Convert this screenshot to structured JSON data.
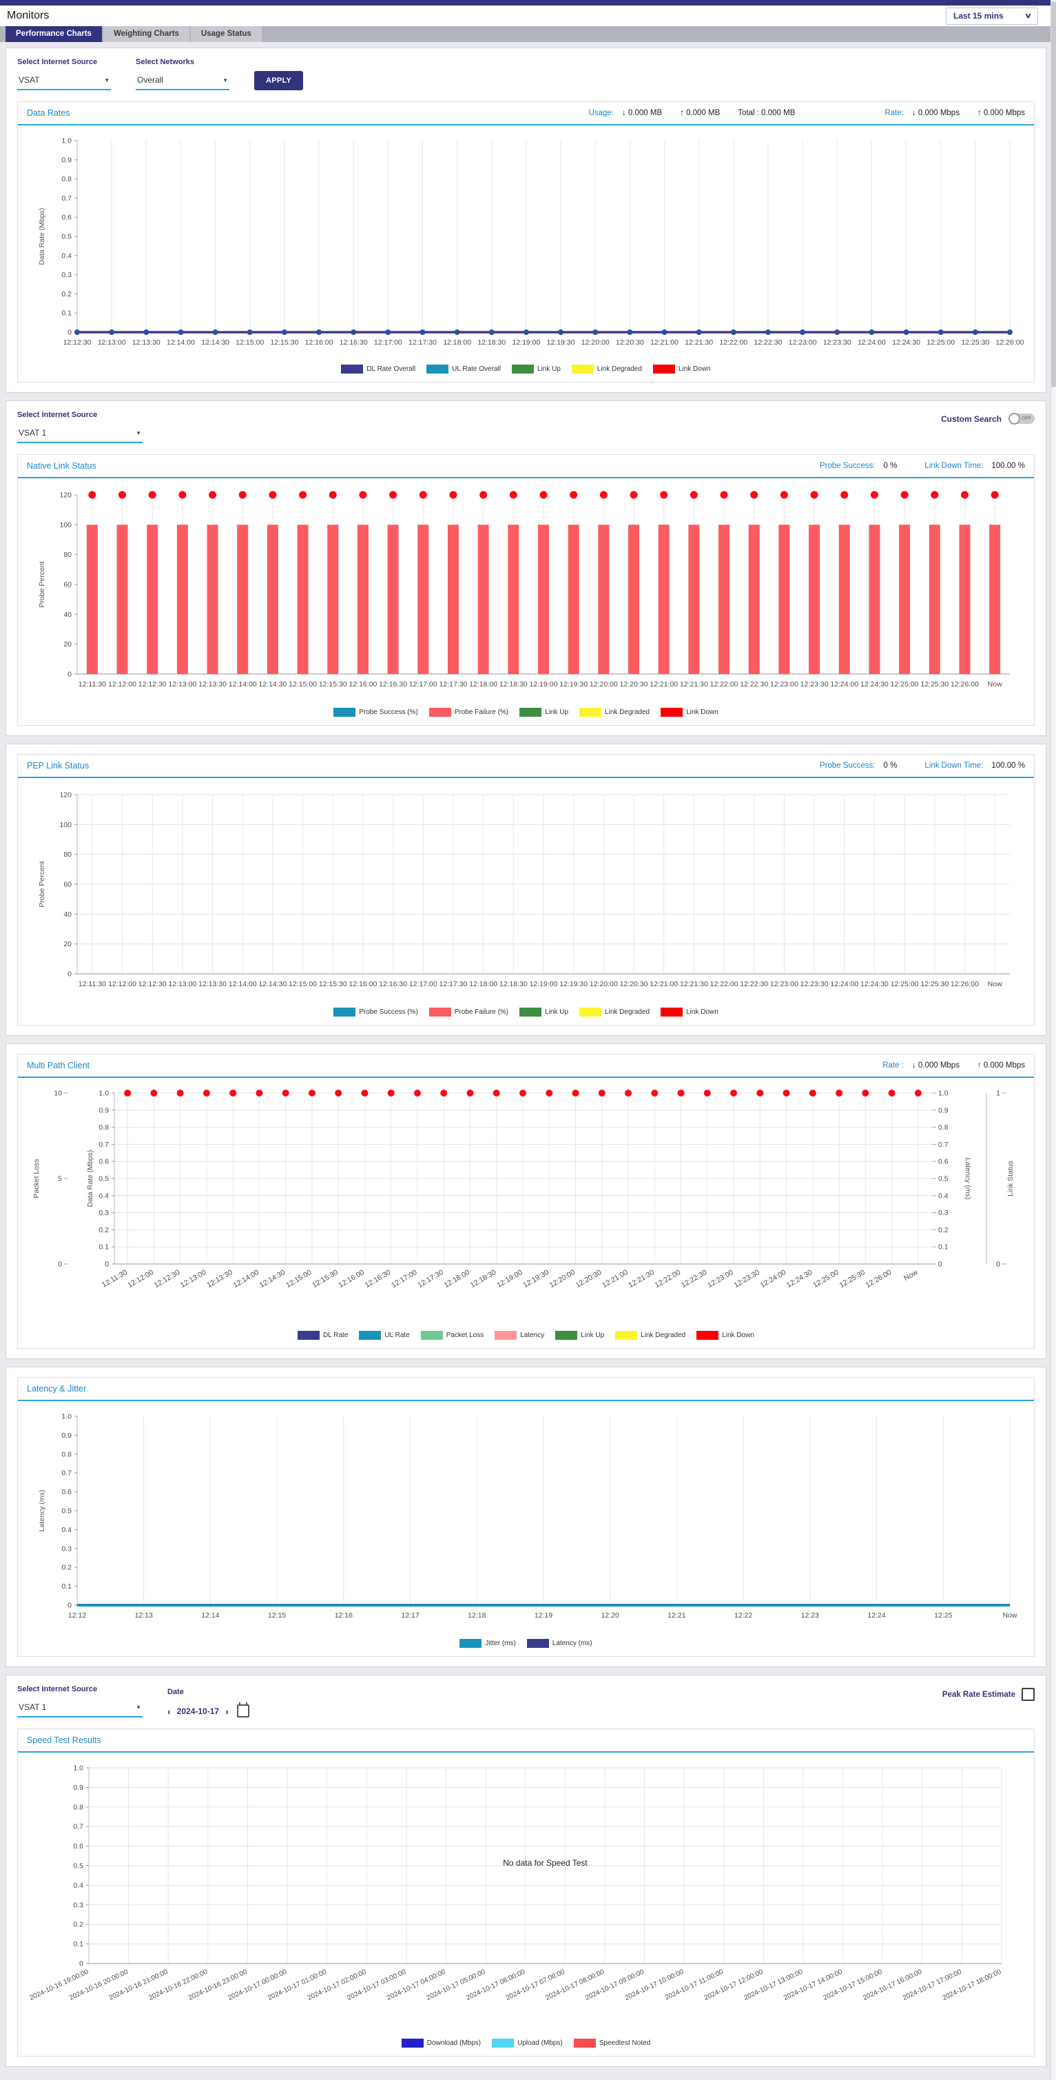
{
  "topbar": {
    "title": "Monitors",
    "time_range": "Last 15 mins"
  },
  "tabs": [
    {
      "label": "Performance Charts",
      "active": true
    },
    {
      "label": "Weighting Charts",
      "active": false
    },
    {
      "label": "Usage Status",
      "active": false
    }
  ],
  "filters1": {
    "source_label": "Select Internet Source",
    "source_value": "VSAT",
    "networks_label": "Select Networks",
    "networks_value": "Overall",
    "apply_label": "APPLY"
  },
  "filters2": {
    "source_label": "Select Internet Source",
    "source_value": "VSAT 1",
    "custom_search_label": "Custom Search",
    "toggle_state": "OFF"
  },
  "filters3": {
    "source_label": "Select Internet Source",
    "source_value": "VSAT 1",
    "date_label": "Date",
    "date_value": "2024-10-17",
    "prev_icon": "‹",
    "next_icon": "›",
    "peak_label": "Peak Rate Estimate"
  },
  "panels": {
    "data_rates": {
      "title": "Data Rates",
      "usage_label": "Usage:",
      "usage_down": "↓ 0.000 MB",
      "usage_up": "↑ 0.000 MB",
      "usage_total": "Total : 0.000 MB",
      "rate_label": "Rate:",
      "rate_down": "↓ 0.000 Mbps",
      "rate_up": "↑ 0.000 Mbps"
    },
    "native": {
      "title": "Native Link Status",
      "probe_label": "Probe Success:",
      "probe_value": "0 %",
      "downtime_label": "Link Down Time:",
      "downtime_value": "100.00 %"
    },
    "pep": {
      "title": "PEP Link Status",
      "probe_label": "Probe Success:",
      "probe_value": "0 %",
      "downtime_label": "Link Down Time:",
      "downtime_value": "100.00 %"
    },
    "multipath": {
      "title": "Multi Path Client",
      "rate_label": "Rate :",
      "rate_down": "↓ 0.000 Mbps",
      "rate_up": "↑ 0.000 Mbps"
    },
    "latency": {
      "title": "Latency & Jitter"
    },
    "speedtest": {
      "title": "Speed Test Results"
    }
  },
  "colors": {
    "accent_navy": "#32327d",
    "panel_title_blue": "#1d87c8",
    "underline_blue": "#2aa3dc",
    "dl_navy": "#3b3b8e",
    "teal": "#1a93ba",
    "link_up_green": "#3e8e41",
    "link_degraded_yellow": "#fbf42c",
    "link_down_red": "#fb0000",
    "probe_failure_salmon": "#fb5b60",
    "packet_loss_green": "#70c794",
    "latency_pink": "#fb9598",
    "download_blue": "#2020cc",
    "upload_cyan": "#52d5f0",
    "speedtest_red": "#fb4d52"
  },
  "chart_data": [
    {
      "id": "data_rates",
      "type": "line",
      "title": "Data Rates",
      "ylabel": "Data Rate (Mbps)",
      "ylim": [
        0,
        1
      ],
      "yticks": [
        1,
        0.9,
        0.8,
        0.7,
        0.6,
        0.5,
        0.4,
        0.3,
        0.2,
        0.1,
        0
      ],
      "ytick_labels": [
        "1.0",
        "0.9",
        "0.8",
        "0.7",
        "0.6",
        "0.5",
        "0.4",
        "0.3",
        "0.2",
        "0.1",
        "0"
      ],
      "categories": [
        "12:12:30",
        "12:13:00",
        "12:13:30",
        "12:14:00",
        "12:14:30",
        "12:15:00",
        "12:15:30",
        "12:16:00",
        "12:16:30",
        "12:17:00",
        "12:17:30",
        "12:18:00",
        "12:18:30",
        "12:19:00",
        "12:19:30",
        "12:20:00",
        "12:20:30",
        "12:21:00",
        "12:21:30",
        "12:22:00",
        "12:22:30",
        "12:23:00",
        "12:23:30",
        "12:24:00",
        "12:24:30",
        "12:25:00",
        "12:25:30",
        "12:26:00"
      ],
      "series": [
        {
          "name": "UL Rate Overall",
          "type": "line",
          "color": "#1a93ba",
          "width": 2,
          "values": [
            0,
            0,
            0,
            0,
            0,
            0,
            0,
            0,
            0,
            0,
            0,
            0,
            0,
            0,
            0,
            0,
            0,
            0,
            0,
            0,
            0,
            0,
            0,
            0,
            0,
            0,
            0,
            0
          ]
        },
        {
          "name": "DL Rate Overall",
          "type": "line",
          "color": "#3b3b8e",
          "width": 3.5,
          "dots": true,
          "dot_r": 4,
          "dot_color": "#2d4f9e",
          "values": [
            0,
            0,
            0,
            0,
            0,
            0,
            0,
            0,
            0,
            0,
            0,
            0,
            0,
            0,
            0,
            0,
            0,
            0,
            0,
            0,
            0,
            0,
            0,
            0,
            0,
            0,
            0,
            0
          ]
        }
      ],
      "legend": [
        {
          "label": "DL Rate Overall",
          "color": "#3b3b8e"
        },
        {
          "label": "UL Rate Overall",
          "color": "#1a93ba"
        },
        {
          "label": "Link Up",
          "color": "#3e8e41"
        },
        {
          "label": "Link Degraded",
          "color": "#fbf42c"
        },
        {
          "label": "Link Down",
          "color": "#fb0000"
        }
      ]
    },
    {
      "id": "native",
      "type": "bar",
      "title": "Native Link Status",
      "ylabel": "Probe Percent",
      "ylim": [
        0,
        120
      ],
      "yticks": [
        120,
        100,
        80,
        60,
        40,
        20,
        0
      ],
      "ytick_labels": [
        "120",
        "100",
        "80",
        "60",
        "40",
        "20",
        "0"
      ],
      "categories": [
        "12:11:30",
        "12:12:00",
        "12:12:30",
        "12:13:00",
        "12:13:30",
        "12:14:00",
        "12:14:30",
        "12:15:00",
        "12:15:30",
        "12:16:00",
        "12:16:30",
        "12:17:00",
        "12:17:30",
        "12:18:00",
        "12:18:30",
        "12:19:00",
        "12:19:30",
        "12:20:00",
        "12:20:30",
        "12:21:00",
        "12:21:30",
        "12:22:00",
        "12:22:30",
        "12:23:00",
        "12:23:30",
        "12:24:00",
        "12:24:30",
        "12:25:00",
        "12:25:30",
        "12:26:00",
        "Now"
      ],
      "series": [
        {
          "name": "Probe Failure (%)",
          "type": "bars",
          "color": "#fb5b60",
          "values": [
            100,
            100,
            100,
            100,
            100,
            100,
            100,
            100,
            100,
            100,
            100,
            100,
            100,
            100,
            100,
            100,
            100,
            100,
            100,
            100,
            100,
            100,
            100,
            100,
            100,
            100,
            100,
            100,
            100,
            100,
            100
          ]
        },
        {
          "name": "Link Down",
          "type": "dots",
          "color": "#fb0a10",
          "r": 5.5,
          "values": [
            120,
            120,
            120,
            120,
            120,
            120,
            120,
            120,
            120,
            120,
            120,
            120,
            120,
            120,
            120,
            120,
            120,
            120,
            120,
            120,
            120,
            120,
            120,
            120,
            120,
            120,
            120,
            120,
            120,
            120,
            120
          ]
        }
      ],
      "legend": [
        {
          "label": "Probe Success (%)",
          "color": "#1a93ba"
        },
        {
          "label": "Probe Failure (%)",
          "color": "#fb5b60"
        },
        {
          "label": "Link Up",
          "color": "#3e8e41"
        },
        {
          "label": "Link Degraded",
          "color": "#fbf42c"
        },
        {
          "label": "Link Down",
          "color": "#fb0000"
        }
      ]
    },
    {
      "id": "pep",
      "type": "bar",
      "title": "PEP Link Status",
      "ylabel": "Probe Percent",
      "ylim": [
        0,
        120
      ],
      "yticks": [
        120,
        100,
        80,
        60,
        40,
        20,
        0
      ],
      "ytick_labels": [
        "120",
        "100",
        "80",
        "60",
        "40",
        "20",
        "0"
      ],
      "categories": [
        "12:11:30",
        "12:12:00",
        "12:12:30",
        "12:13:00",
        "12:13:30",
        "12:14:00",
        "12:14:30",
        "12:15:00",
        "12:15:30",
        "12:16:00",
        "12:16:30",
        "12:17:00",
        "12:17:30",
        "12:18:00",
        "12:18:30",
        "12:19:00",
        "12:19:30",
        "12:20:00",
        "12:20:30",
        "12:21:00",
        "12:21:30",
        "12:22:00",
        "12:22:30",
        "12:23:00",
        "12:23:30",
        "12:24:00",
        "12:24:30",
        "12:25:00",
        "12:25:30",
        "12:26:00",
        "Now"
      ],
      "series": [],
      "legend": [
        {
          "label": "Probe Success (%)",
          "color": "#1a93ba"
        },
        {
          "label": "Probe Failure (%)",
          "color": "#fb5b60"
        },
        {
          "label": "Link Up",
          "color": "#3e8e41"
        },
        {
          "label": "Link Degraded",
          "color": "#fbf42c"
        },
        {
          "label": "Link Down",
          "color": "#fb0000"
        }
      ]
    },
    {
      "id": "multipath",
      "type": "line",
      "title": "Multi Path Client",
      "ylabel": "Data Rate (Mbps)",
      "ylim": [
        0,
        1
      ],
      "yticks": [
        1,
        0.9,
        0.8,
        0.7,
        0.6,
        0.5,
        0.4,
        0.3,
        0.2,
        0.1,
        0
      ],
      "ytick_labels": [
        "1.0",
        "0.9",
        "0.8",
        "0.7",
        "0.6",
        "0.5",
        "0.4",
        "0.3",
        "0.2",
        "0.1",
        "0"
      ],
      "extra_axes": {
        "left_outer": {
          "label": "Packet Loss",
          "lim": [
            0,
            10
          ],
          "ticks": [
            10,
            5,
            0
          ],
          "labels": [
            "10",
            "5",
            "0"
          ]
        },
        "right_inner": {
          "label": "Latency (ms)",
          "lim": [
            0,
            1
          ],
          "ticks": [
            1,
            0.9,
            0.8,
            0.7,
            0.6,
            0.5,
            0.4,
            0.3,
            0.2,
            0.1,
            0
          ],
          "labels": [
            "1.0",
            "0.9",
            "0.8",
            "0.7",
            "0.6",
            "0.5",
            "0.4",
            "0.3",
            "0.2",
            "0.1",
            "0"
          ]
        },
        "right_outer": {
          "label": "Link Status",
          "lim": [
            0,
            1
          ],
          "ticks": [
            1,
            0
          ],
          "labels": [
            "1",
            "0"
          ]
        }
      },
      "categories": [
        "12:11:30",
        "12:12:00",
        "12:12:30",
        "12:13:00",
        "12:13:30",
        "12:14:00",
        "12:14:30",
        "12:15:00",
        "12:15:30",
        "12:16:00",
        "12:16:30",
        "12:17:00",
        "12:17:30",
        "12:18:00",
        "12:18:30",
        "12:19:00",
        "12:19:30",
        "12:20:00",
        "12:20:30",
        "12:21:00",
        "12:21:30",
        "12:22:00",
        "12:22:30",
        "12:23:00",
        "12:23:30",
        "12:24:00",
        "12:24:30",
        "12:25:00",
        "12:25:30",
        "12:26:00",
        "Now"
      ],
      "series": [
        {
          "name": "Link Down",
          "type": "dots",
          "color": "#fb0a10",
          "r": 5,
          "values": [
            1,
            1,
            1,
            1,
            1,
            1,
            1,
            1,
            1,
            1,
            1,
            1,
            1,
            1,
            1,
            1,
            1,
            1,
            1,
            1,
            1,
            1,
            1,
            1,
            1,
            1,
            1,
            1,
            1,
            1,
            1
          ]
        }
      ],
      "legend": [
        {
          "label": "DL Rate",
          "color": "#3b3b8e"
        },
        {
          "label": "UL Rate",
          "color": "#1a93ba"
        },
        {
          "label": "Packet Loss",
          "color": "#70c794"
        },
        {
          "label": "Latency",
          "color": "#fb9598"
        },
        {
          "label": "Link Up",
          "color": "#3e8e41"
        },
        {
          "label": "Link Degraded",
          "color": "#fbf42c"
        },
        {
          "label": "Link Down",
          "color": "#fb0000"
        }
      ]
    },
    {
      "id": "latency",
      "type": "line",
      "title": "Latency & Jitter",
      "ylabel": "Latency (ms)",
      "ylim": [
        0,
        1
      ],
      "yticks": [
        1,
        0.9,
        0.8,
        0.7,
        0.6,
        0.5,
        0.4,
        0.3,
        0.2,
        0.1,
        0
      ],
      "ytick_labels": [
        "1.0",
        "0.9",
        "0.8",
        "0.7",
        "0.6",
        "0.5",
        "0.4",
        "0.3",
        "0.2",
        "0.1",
        "0"
      ],
      "categories": [
        "12:12",
        "12:13",
        "12:14",
        "12:15",
        "12:16",
        "12:17",
        "12:18",
        "12:19",
        "12:20",
        "12:21",
        "12:22",
        "12:23",
        "12:24",
        "12:25",
        "Now"
      ],
      "series": [
        {
          "name": "Latency (ms)",
          "type": "line",
          "color": "#3b3b8e",
          "width": 2,
          "values": [
            0,
            0,
            0,
            0,
            0,
            0,
            0,
            0,
            0,
            0,
            0,
            0,
            0,
            0,
            0
          ]
        },
        {
          "name": "Jitter (ms)",
          "type": "line",
          "color": "#1a93ba",
          "width": 4,
          "values": [
            0,
            0,
            0,
            0,
            0,
            0,
            0,
            0,
            0,
            0,
            0,
            0,
            0,
            0,
            0
          ]
        }
      ],
      "legend": [
        {
          "label": "Jitter (ms)",
          "color": "#1a93ba"
        },
        {
          "label": "Latency (ms)",
          "color": "#3b3b8e"
        }
      ]
    },
    {
      "id": "speedtest",
      "type": "bar",
      "title": "Speed Test Results",
      "ylabel": "",
      "ylim": [
        0,
        1
      ],
      "yticks": [
        1,
        0.9,
        0.8,
        0.7,
        0.6,
        0.5,
        0.4,
        0.3,
        0.2,
        0.1,
        0
      ],
      "ytick_labels": [
        "1.0",
        "0.9",
        "0.8",
        "0.7",
        "0.6",
        "0.5",
        "0.4",
        "0.3",
        "0.2",
        "0.1",
        "0"
      ],
      "message": "No data for Speed Test",
      "categories": [
        "2024-10-16 19:00:00",
        "2024-10-16 20:00:00",
        "2024-10-16 21:00:00",
        "2024-10-16 22:00:00",
        "2024-10-16 23:00:00",
        "2024-10-17 00:00:00",
        "2024-10-17 01:00:00",
        "2024-10-17 02:00:00",
        "2024-10-17 03:00:00",
        "2024-10-17 04:00:00",
        "2024-10-17 05:00:00",
        "2024-10-17 06:00:00",
        "2024-10-17 07:00:00",
        "2024-10-17 08:00:00",
        "2024-10-17 09:00:00",
        "2024-10-17 10:00:00",
        "2024-10-17 11:00:00",
        "2024-10-17 12:00:00",
        "2024-10-17 13:00:00",
        "2024-10-17 14:00:00",
        "2024-10-17 15:00:00",
        "2024-10-17 16:00:00",
        "2024-10-17 17:00:00",
        "2024-10-17 18:00:00"
      ],
      "series": [],
      "legend": [
        {
          "label": "Download (Mbps)",
          "color": "#2020cc"
        },
        {
          "label": "Upload (Mbps)",
          "color": "#52d5f0"
        },
        {
          "label": "Speedtest Noted",
          "color": "#fb4d52"
        }
      ]
    }
  ]
}
